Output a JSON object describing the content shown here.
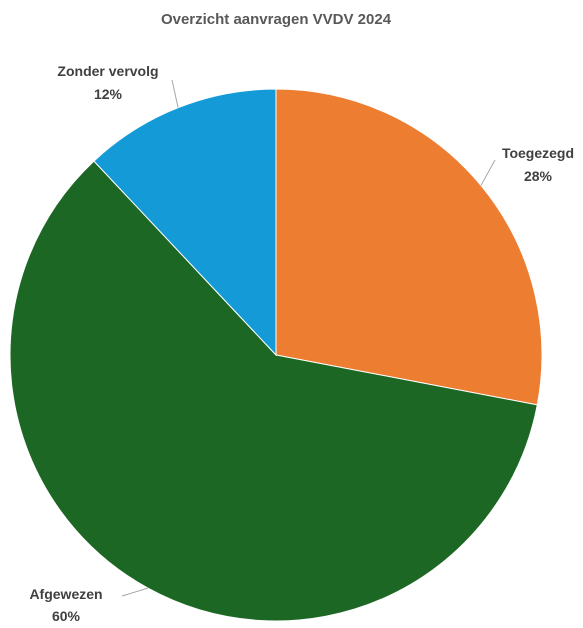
{
  "chart_data": {
    "type": "pie",
    "title": "Overzicht aanvragen VVDV 2024",
    "slices": [
      {
        "label": "Toegezegd",
        "value": 28,
        "value_label": "28%",
        "color": "#ED7D31"
      },
      {
        "label": "Afgewezen",
        "value": 60,
        "value_label": "60%",
        "color": "#1B6723"
      },
      {
        "label": "Zonder vervolg",
        "value": 12,
        "value_label": "12%",
        "color": "#149BD7"
      }
    ],
    "start_angle_deg": 0,
    "direction": "clockwise",
    "legend": "none",
    "data_labels": "outside-with-leader-lines"
  }
}
